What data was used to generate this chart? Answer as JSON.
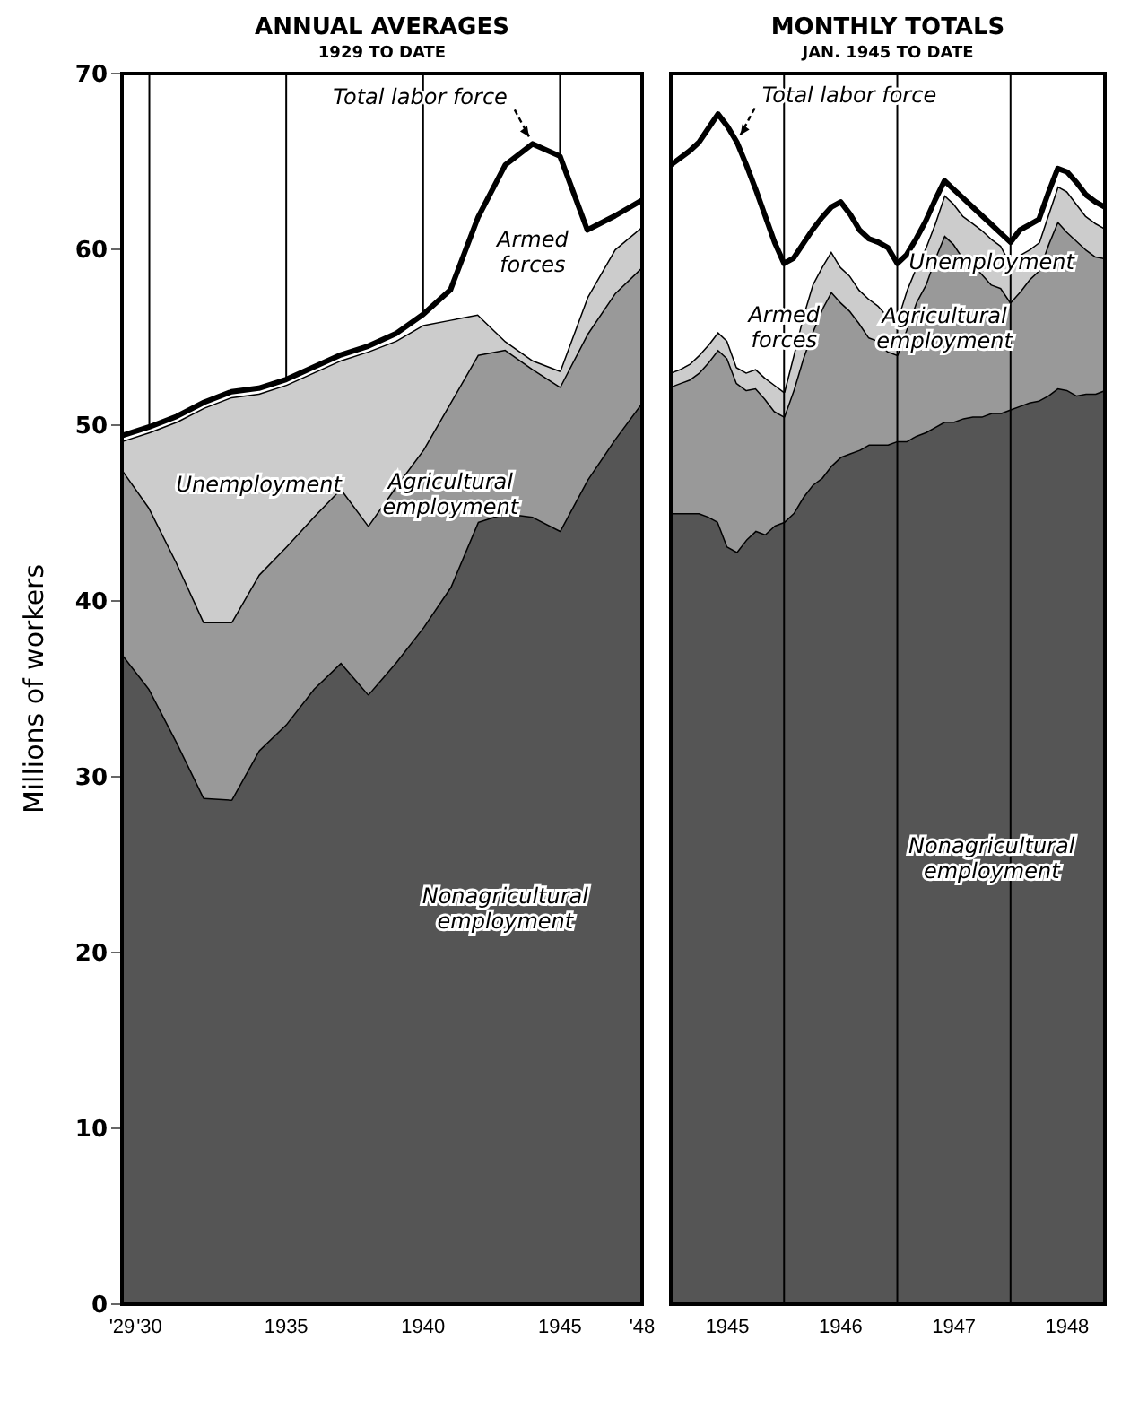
{
  "chart_data": [
    {
      "type": "area",
      "title": "ANNUAL AVERAGES",
      "subtitle": "1929 TO DATE",
      "ylabel": "Millions of workers",
      "stacked": true,
      "grid": "x",
      "legend": false,
      "x": [
        1929,
        1930,
        1931,
        1932,
        1933,
        1934,
        1935,
        1936,
        1937,
        1938,
        1939,
        1940,
        1941,
        1942,
        1943,
        1944,
        1945,
        1946,
        1947,
        1948
      ],
      "xlim": [
        1929,
        1948
      ],
      "xticks": [
        {
          "value": 1929,
          "label": "'29"
        },
        {
          "value": 1930,
          "label": "'30"
        },
        1935,
        1940,
        1945,
        {
          "value": 1948,
          "label": "'48"
        }
      ],
      "ylim": [
        0,
        70
      ],
      "yticks": [
        0,
        10,
        20,
        30,
        40,
        50,
        60,
        70
      ],
      "series": [
        {
          "name": "Nonagricultural employment",
          "color": "#555555",
          "values": [
            37.0,
            35.0,
            32.0,
            28.8,
            28.7,
            31.5,
            33.0,
            35.0,
            36.5,
            34.7,
            36.5,
            38.5,
            40.8,
            44.5,
            45.0,
            44.8,
            44.0,
            46.9,
            49.2,
            51.3
          ]
        },
        {
          "name": "Agricultural employment",
          "color": "#999999",
          "values": [
            10.5,
            10.3,
            10.2,
            10.0,
            10.1,
            10.0,
            10.1,
            9.8,
            9.9,
            9.6,
            10.0,
            10.1,
            10.5,
            9.5,
            9.3,
            8.4,
            8.2,
            8.3,
            8.3,
            7.7
          ]
        },
        {
          "name": "Unemployment",
          "color": "#cccccc",
          "values": [
            1.6,
            4.3,
            8.0,
            12.2,
            12.8,
            10.3,
            9.2,
            8.2,
            7.3,
            9.9,
            8.3,
            7.1,
            4.7,
            2.3,
            0.5,
            0.5,
            0.9,
            2.1,
            2.5,
            2.3
          ]
        },
        {
          "name": "Armed forces",
          "color": "#ffffff",
          "values": [
            0.3,
            0.3,
            0.3,
            0.3,
            0.3,
            0.3,
            0.3,
            0.3,
            0.3,
            0.3,
            0.4,
            0.6,
            1.7,
            5.5,
            10.0,
            12.3,
            12.2,
            3.8,
            1.9,
            1.5
          ]
        }
      ],
      "annotations": [
        {
          "text": "Total labor force",
          "x": 1944,
          "y": 66.0
        }
      ]
    },
    {
      "type": "area",
      "title": "MONTHLY TOTALS",
      "subtitle": "JAN. 1945 TO DATE",
      "stacked": true,
      "legend": false,
      "tick_labels": "x",
      "x": [
        "1945-01",
        "1945-02",
        "1945-03",
        "1945-04",
        "1945-05",
        "1945-06",
        "1945-07",
        "1945-08",
        "1945-09",
        "1945-10",
        "1945-11",
        "1945-12",
        "1946-01",
        "1946-02",
        "1946-03",
        "1946-04",
        "1946-05",
        "1946-06",
        "1946-07",
        "1946-08",
        "1946-09",
        "1946-10",
        "1946-11",
        "1946-12",
        "1947-01",
        "1947-02",
        "1947-03",
        "1947-04",
        "1947-05",
        "1947-06",
        "1947-07",
        "1947-08",
        "1947-09",
        "1947-10",
        "1947-11",
        "1947-12",
        "1948-01",
        "1948-02",
        "1948-03",
        "1948-04",
        "1948-05",
        "1948-06",
        "1948-07",
        "1948-08",
        "1948-09",
        "1948-10",
        "1948-11"
      ],
      "xlim": [
        "1945-01",
        "1948-11"
      ],
      "xticks": [
        {
          "value": "1945-07",
          "label": "1945"
        },
        {
          "value": "1946-07",
          "label": "1946"
        },
        {
          "value": "1947-07",
          "label": "1947"
        },
        {
          "value": "1948-07",
          "label": "1948"
        }
      ],
      "ylim": [
        0,
        70
      ],
      "yticks": [
        0,
        10,
        20,
        30,
        40,
        50,
        60,
        70
      ],
      "ref_lines": [
        {
          "axis": "x",
          "value": "1946-01"
        },
        {
          "axis": "x",
          "value": "1947-01"
        },
        {
          "axis": "x",
          "value": "1948-01"
        }
      ],
      "series": [
        {
          "name": "Nonagricultural employment",
          "color": "#555555",
          "values": [
            45.0,
            45.0,
            45.0,
            45.0,
            44.8,
            44.5,
            43.1,
            42.8,
            43.5,
            44.0,
            43.8,
            44.3,
            44.5,
            45.0,
            45.9,
            46.6,
            47.0,
            47.7,
            48.2,
            48.4,
            48.6,
            48.9,
            48.9,
            48.9,
            49.1,
            49.1,
            49.4,
            49.6,
            49.9,
            50.2,
            50.2,
            50.4,
            50.5,
            50.5,
            50.7,
            50.7,
            50.9,
            51.1,
            51.3,
            51.4,
            51.7,
            52.1,
            52.0,
            51.7,
            51.8,
            51.8,
            52.0
          ]
        },
        {
          "name": "Agricultural employment",
          "color": "#999999",
          "values": [
            7.2,
            7.4,
            7.6,
            8.0,
            8.8,
            9.8,
            10.7,
            9.6,
            8.5,
            8.1,
            7.7,
            6.5,
            6.0,
            7.0,
            7.9,
            8.7,
            9.6,
            9.9,
            8.8,
            8.1,
            7.2,
            6.1,
            5.9,
            5.3,
            4.9,
            6.4,
            7.6,
            8.4,
            9.6,
            10.6,
            10.1,
            9.1,
            8.7,
            8.1,
            7.3,
            7.1,
            6.1,
            6.5,
            7.0,
            7.4,
            8.6,
            9.5,
            9.0,
            8.8,
            8.2,
            7.8,
            7.5
          ]
        },
        {
          "name": "Unemployment",
          "color": "#cccccc",
          "values": [
            0.8,
            0.8,
            0.9,
            1.0,
            1.0,
            1.0,
            1.0,
            0.9,
            1.0,
            1.1,
            1.2,
            1.5,
            1.4,
            2.0,
            2.4,
            2.7,
            2.4,
            2.3,
            2.0,
            2.0,
            1.9,
            2.2,
            2.0,
            2.0,
            2.0,
            2.2,
            2.0,
            2.1,
            2.0,
            2.3,
            2.3,
            2.4,
            2.3,
            2.5,
            2.6,
            2.4,
            2.2,
            2.1,
            1.7,
            1.6,
            1.7,
            2.0,
            2.3,
            2.1,
            1.9,
            1.9,
            1.7
          ]
        },
        {
          "name": "Armed forces",
          "color": "#ffffff",
          "values": [
            11.8,
            12.0,
            12.1,
            12.1,
            12.3,
            12.4,
            12.2,
            12.8,
            11.8,
            10.2,
            9.2,
            8.1,
            7.3,
            5.5,
            4.1,
            3.1,
            2.8,
            2.5,
            3.7,
            3.5,
            3.4,
            3.4,
            3.6,
            3.9,
            3.2,
            2.0,
            1.6,
            1.5,
            1.3,
            0.8,
            0.8,
            1.0,
            0.9,
            0.8,
            0.8,
            0.7,
            1.2,
            1.4,
            1.4,
            1.3,
            1.2,
            1.0,
            1.1,
            1.2,
            1.2,
            1.2,
            1.2
          ]
        }
      ],
      "annotations": [
        {
          "text": "Total labor force",
          "x": "1945-08",
          "y": 66.1
        }
      ]
    }
  ]
}
